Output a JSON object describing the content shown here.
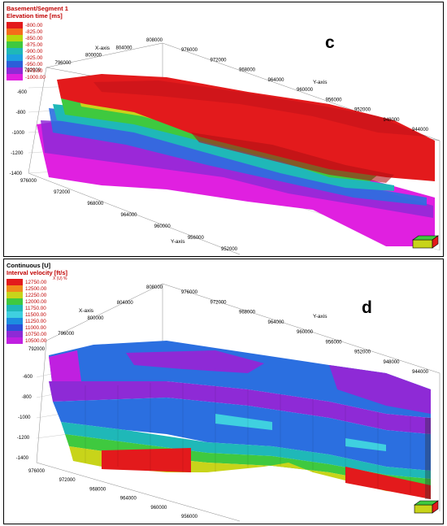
{
  "panels": {
    "c": {
      "letter": "c",
      "legend_title": "Basement/Segment 1",
      "legend_subtitle": "Elevation time [ms]",
      "legend_items": [
        {
          "label": "-800.00",
          "color": "#e31a1c"
        },
        {
          "label": "-825.00",
          "color": "#f46d1a"
        },
        {
          "label": "-850.00",
          "color": "#b5d80b"
        },
        {
          "label": "-875.00",
          "color": "#3fc93f"
        },
        {
          "label": "-900.00",
          "color": "#1fb8b8"
        },
        {
          "label": "-925.00",
          "color": "#1ca0e0"
        },
        {
          "label": "-950.00",
          "color": "#2b5fd9"
        },
        {
          "label": "-975.00",
          "color": "#8e2ad6"
        },
        {
          "label": "-1000.00",
          "color": "#e020e0"
        }
      ],
      "axis_x_name": "X-axis",
      "axis_y_name": "Y-axis",
      "x_top_ticks": [
        "808000",
        "804000",
        "800000",
        "796000",
        "792000"
      ],
      "y_top_ticks": [
        "976000",
        "972000",
        "968000",
        "964000",
        "960000",
        "956000",
        "952000",
        "948000",
        "944000"
      ],
      "z_ticks": [
        "-600",
        "-800",
        "-1000",
        "-1200",
        "-1400"
      ],
      "y_bottom_ticks": [
        "976000",
        "972000",
        "968000",
        "964000",
        "960000",
        "956000",
        "952000"
      ]
    },
    "d": {
      "letter": "d",
      "legend_title": "Continuous [U]",
      "legend_subtitle": "Interval velocity [ft/s]",
      "unit_label": "X (U) %",
      "legend_items": [
        {
          "label": "12750.00",
          "color": "#e31a1c"
        },
        {
          "label": "12500.00",
          "color": "#f08a1a"
        },
        {
          "label": "12250.00",
          "color": "#c8d41a"
        },
        {
          "label": "12000.00",
          "color": "#3fc93f"
        },
        {
          "label": "11750.00",
          "color": "#1fb8b8"
        },
        {
          "label": "11500.00",
          "color": "#3fd0e0"
        },
        {
          "label": "11250.00",
          "color": "#1c8ee0"
        },
        {
          "label": "11000.00",
          "color": "#2b4fd9"
        },
        {
          "label": "10750.00",
          "color": "#8e2ad6"
        },
        {
          "label": "10500.00",
          "color": "#c020e0"
        }
      ],
      "axis_x_name": "X-axis",
      "axis_y_name": "Y-axis",
      "x_top_ticks": [
        "808000",
        "804000",
        "800000",
        "796000",
        "792000"
      ],
      "y_top_ticks": [
        "976000",
        "972000",
        "968000",
        "964000",
        "960000",
        "956000",
        "952000",
        "948000",
        "944000"
      ],
      "z_ticks": [
        "-600",
        "-800",
        "-1000",
        "-1200",
        "-1400"
      ],
      "y_bottom_ticks": [
        "976000",
        "972000",
        "968000",
        "964000",
        "960000",
        "956000"
      ]
    }
  },
  "colors": {
    "red": "#e31a1c",
    "orange": "#f08a1a",
    "yellow": "#c8d41a",
    "green": "#3fc93f",
    "cyan": "#1fb8b8",
    "blue": "#2b6fe0",
    "purple": "#8e2ad6",
    "magenta": "#e020e0"
  }
}
